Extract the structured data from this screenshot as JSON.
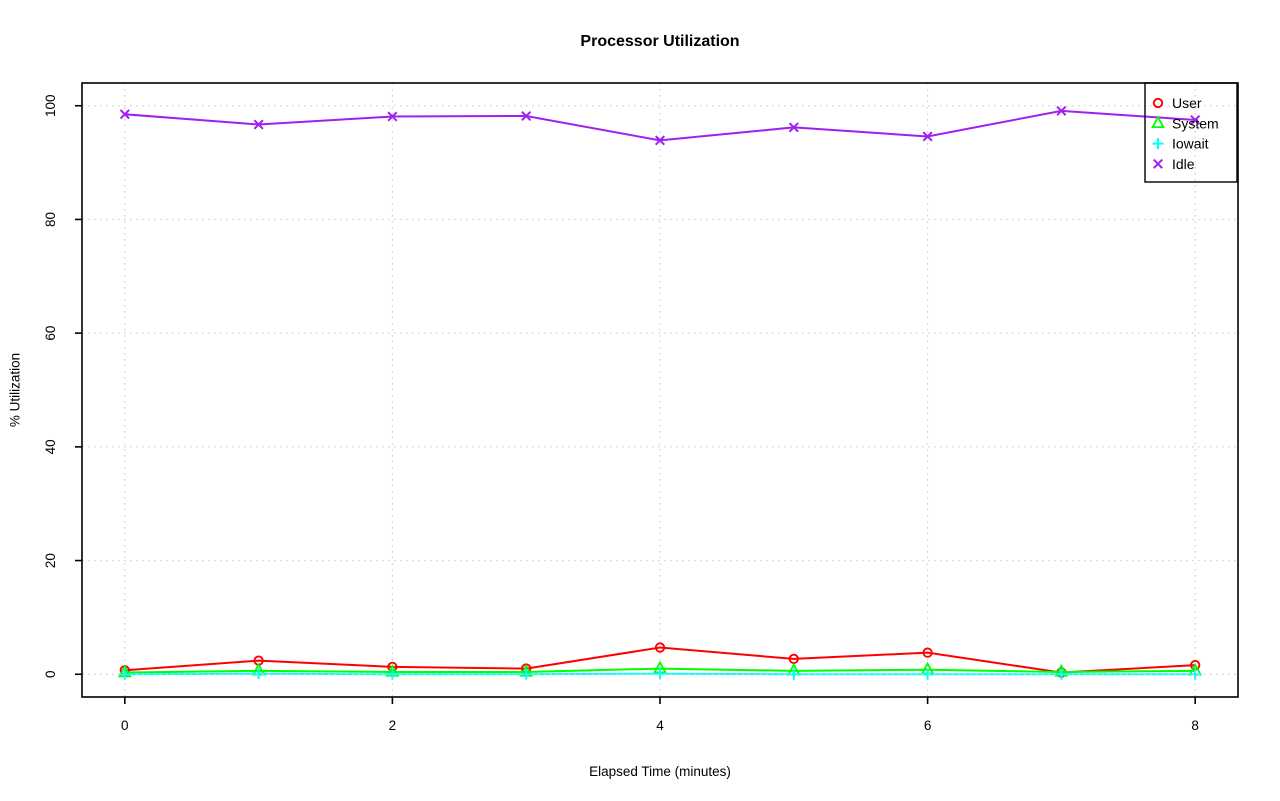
{
  "page": {
    "background_color": "#FFFFFF"
  },
  "chart_data": {
    "type": "line",
    "title": "Processor Utilization",
    "xlabel": "Elapsed Time (minutes)",
    "ylabel": "% Utilization",
    "x": [
      0,
      1,
      2,
      3,
      4,
      5,
      6,
      7,
      8
    ],
    "xticks": [
      0,
      2,
      4,
      6,
      8
    ],
    "yticks": [
      0,
      20,
      40,
      60,
      80,
      100
    ],
    "xlim": [
      -0.32,
      8.32
    ],
    "ylim": [
      -4,
      104
    ],
    "grid": true,
    "grid_color": "#D3D3D3",
    "axis_color": "#000000",
    "legend_position": "topright",
    "series": [
      {
        "name": "User",
        "color": "#FF0000",
        "marker": "circle",
        "values": [
          0.7,
          2.4,
          1.3,
          1.0,
          4.7,
          2.7,
          3.8,
          0.3,
          1.6
        ]
      },
      {
        "name": "System",
        "color": "#00FF00",
        "marker": "triangle",
        "values": [
          0.3,
          0.6,
          0.4,
          0.4,
          1.0,
          0.6,
          0.8,
          0.4,
          0.6
        ]
      },
      {
        "name": "Iowait",
        "color": "#00FFFF",
        "marker": "plus",
        "values": [
          0.0,
          0.1,
          0.0,
          0.0,
          0.1,
          0.0,
          0.0,
          0.0,
          0.0
        ]
      },
      {
        "name": "Idle",
        "color": "#A020F0",
        "marker": "x",
        "values": [
          98.5,
          96.7,
          98.1,
          98.2,
          93.9,
          96.2,
          94.6,
          99.1,
          97.5
        ]
      }
    ]
  }
}
